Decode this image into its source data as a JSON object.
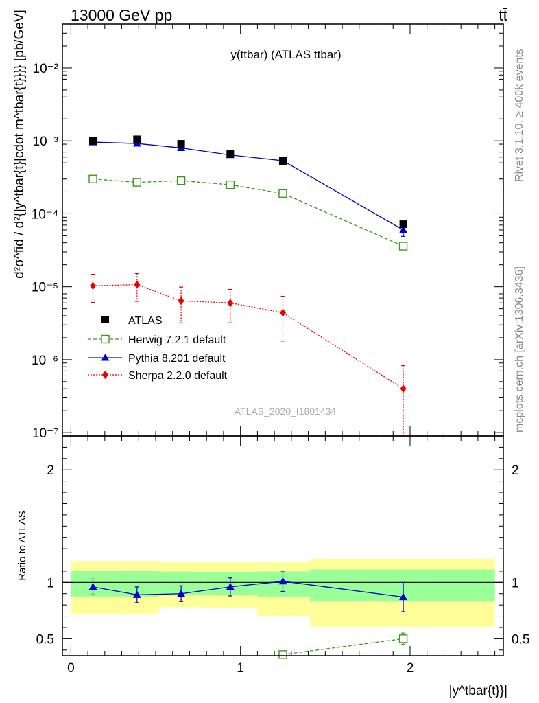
{
  "header": {
    "left": "13000 GeV pp",
    "right": "tt̄"
  },
  "side_labels": {
    "rivet": "Rivet 3.1.10, ≥ 400k events",
    "mcplots": "mcplots.cern.ch [arXiv:1306.3436]"
  },
  "chart_data": [
    {
      "type": "scatter",
      "title": "y(ttbar) (ATLAS ttbar)",
      "watermark": "ATLAS_2020_I1801434",
      "ylabel": "d²σ^fid / d²{|y^tbar{t}|cdot m^tbar{t}}}} [pb/GeV]",
      "xlabel": "|y^tbar{t}}|",
      "y_scale": "log",
      "xlim": [
        -0.05,
        2.55
      ],
      "ylim": [
        9e-08,
        0.04
      ],
      "y_tick_labels": [
        "10⁻⁷",
        "10⁻⁶",
        "10⁻⁵",
        "10⁻⁴",
        "10⁻³",
        "10⁻²"
      ],
      "x_tick_labels": [
        "0",
        "1",
        "2"
      ],
      "legend_position": "lower-left",
      "series": [
        {
          "name": "ATLAS",
          "color": "#000000",
          "marker": "filled-square",
          "line": "none",
          "x": [
            0.13,
            0.39,
            0.65,
            0.94,
            1.25,
            1.96
          ],
          "y": [
            0.001,
            0.00105,
            0.00091,
            0.00066,
            0.00053,
            7.2e-05
          ]
        },
        {
          "name": "Herwig 7.2.1 default",
          "color": "#3a9a1a",
          "marker": "open-square",
          "line": "dashed",
          "x": [
            0.13,
            0.39,
            0.65,
            0.94,
            1.25,
            1.96
          ],
          "y": [
            0.0003,
            0.00027,
            0.000285,
            0.00025,
            0.00019,
            3.6e-05
          ]
        },
        {
          "name": "Pythia 8.201 default",
          "color": "#0000cc",
          "marker": "filled-triangle",
          "line": "solid",
          "x": [
            0.13,
            0.39,
            0.65,
            0.94,
            1.25,
            1.96
          ],
          "y": [
            0.00096,
            0.00092,
            0.0008,
            0.00064,
            0.000535,
            6e-05
          ],
          "err_up": [
            6e-05,
            5e-05,
            5e-05,
            4e-05,
            3e-05,
            1.1e-05
          ],
          "err_down": [
            6e-05,
            5e-05,
            5e-05,
            4e-05,
            3e-05,
            1.1e-05
          ]
        },
        {
          "name": "Sherpa 2.2.0 default",
          "color": "#ee0000",
          "marker": "filled-diamond",
          "line": "dotted",
          "x": [
            0.13,
            0.39,
            0.65,
            0.94,
            1.25,
            1.96
          ],
          "y": [
            1.03e-05,
            1.07e-05,
            6.4e-06,
            6e-06,
            4.4e-06,
            4e-07
          ],
          "err_up": [
            4.5e-06,
            4.5e-06,
            3.5e-06,
            3.2e-06,
            3e-06,
            4.3e-07
          ],
          "err_down": [
            4.2e-06,
            4.4e-06,
            3.2e-06,
            2.8e-06,
            2.6e-06,
            3.1e-07
          ]
        }
      ]
    },
    {
      "type": "scatter",
      "ylabel": "Ratio to ATLAS",
      "xlabel": "|y^tbar{t}}|",
      "xlim": [
        -0.05,
        2.55
      ],
      "ylim": [
        0.35,
        2.3
      ],
      "y_tick_labels": [
        "0.5",
        "1",
        "2"
      ],
      "x_tick_labels": [
        "0",
        "1",
        "2"
      ],
      "reference_line": 1,
      "uncertainty_bands": [
        {
          "x_lo": 0.0,
          "x_hi": 0.52,
          "inner": [
            0.875,
            1.105
          ],
          "outer": [
            0.715,
            1.19
          ]
        },
        {
          "x_lo": 0.52,
          "x_hi": 0.78,
          "inner": [
            0.885,
            1.095
          ],
          "outer": [
            0.78,
            1.18
          ]
        },
        {
          "x_lo": 0.78,
          "x_hi": 1.1,
          "inner": [
            0.89,
            1.093
          ],
          "outer": [
            0.77,
            1.18
          ]
        },
        {
          "x_lo": 1.1,
          "x_hi": 1.41,
          "inner": [
            0.875,
            1.097
          ],
          "outer": [
            0.7,
            1.185
          ]
        },
        {
          "x_lo": 1.41,
          "x_hi": 2.5,
          "inner": [
            0.83,
            1.115
          ],
          "outer": [
            0.6,
            1.21
          ]
        }
      ],
      "band_colors": {
        "inner": "#99ff99",
        "outer": "#ffff99"
      },
      "series": [
        {
          "name": "Pythia 8.201 default",
          "color": "#0000cc",
          "marker": "filled-triangle",
          "line": "solid",
          "x": [
            0.13,
            0.39,
            0.65,
            0.94,
            1.25,
            1.96
          ],
          "y": [
            0.96,
            0.89,
            0.9,
            0.96,
            1.01,
            0.87
          ],
          "err": [
            0.07,
            0.07,
            0.07,
            0.08,
            0.09,
            0.13
          ]
        },
        {
          "name": "Herwig 7.2.1 default",
          "color": "#3a9a1a",
          "marker": "open-square",
          "line": "dashed",
          "x": [
            1.25,
            1.96
          ],
          "y": [
            0.36,
            0.5
          ],
          "err": [
            0.0,
            0.05
          ]
        }
      ]
    }
  ]
}
